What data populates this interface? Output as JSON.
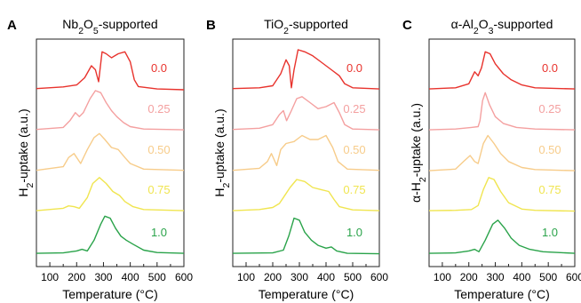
{
  "chart_data": [
    {
      "type": "line",
      "panel_letter": "A",
      "title": "Nb₂O₅-supported",
      "xlabel": "Temperature (°C)",
      "ylabel": "H₂-uptake (a.u.)",
      "xlim": [
        50,
        600
      ],
      "xticks": [
        100,
        200,
        300,
        400,
        500,
        600
      ],
      "y_axis_ticks": false,
      "series": [
        {
          "name": "0.0",
          "color": "#e8332d",
          "offset": 4,
          "points": [
            [
              50,
              0.03
            ],
            [
              150,
              0.07
            ],
            [
              200,
              0.12
            ],
            [
              230,
              0.3
            ],
            [
              255,
              0.6
            ],
            [
              270,
              0.5
            ],
            [
              282,
              0.2
            ],
            [
              295,
              0.95
            ],
            [
              310,
              0.9
            ],
            [
              330,
              0.8
            ],
            [
              355,
              0.9
            ],
            [
              380,
              0.95
            ],
            [
              400,
              0.7
            ],
            [
              415,
              0.25
            ],
            [
              430,
              0.08
            ],
            [
              500,
              0.02
            ],
            [
              600,
              0
            ]
          ]
        },
        {
          "name": "0.25",
          "color": "#f4a0a0",
          "offset": 3,
          "points": [
            [
              50,
              0.03
            ],
            [
              150,
              0.08
            ],
            [
              175,
              0.25
            ],
            [
              195,
              0.45
            ],
            [
              210,
              0.35
            ],
            [
              225,
              0.45
            ],
            [
              250,
              0.8
            ],
            [
              270,
              1.0
            ],
            [
              290,
              0.95
            ],
            [
              310,
              0.7
            ],
            [
              330,
              0.5
            ],
            [
              350,
              0.35
            ],
            [
              375,
              0.2
            ],
            [
              400,
              0.1
            ],
            [
              450,
              0.04
            ],
            [
              600,
              0.02
            ]
          ]
        },
        {
          "name": "0.50",
          "color": "#f7cc8a",
          "offset": 2,
          "points": [
            [
              50,
              0.03
            ],
            [
              150,
              0.12
            ],
            [
              170,
              0.35
            ],
            [
              190,
              0.45
            ],
            [
              205,
              0.3
            ],
            [
              215,
              0.2
            ],
            [
              240,
              0.55
            ],
            [
              265,
              0.85
            ],
            [
              285,
              0.95
            ],
            [
              305,
              0.8
            ],
            [
              330,
              0.6
            ],
            [
              355,
              0.55
            ],
            [
              380,
              0.35
            ],
            [
              400,
              0.2
            ],
            [
              450,
              0.06
            ],
            [
              600,
              0.03
            ]
          ]
        },
        {
          "name": "0.75",
          "color": "#f0e550",
          "offset": 1,
          "points": [
            [
              50,
              0.02
            ],
            [
              150,
              0.08
            ],
            [
              170,
              0.14
            ],
            [
              190,
              0.12
            ],
            [
              210,
              0.08
            ],
            [
              240,
              0.35
            ],
            [
              260,
              0.7
            ],
            [
              285,
              0.85
            ],
            [
              310,
              0.7
            ],
            [
              335,
              0.5
            ],
            [
              360,
              0.4
            ],
            [
              380,
              0.25
            ],
            [
              410,
              0.12
            ],
            [
              450,
              0.05
            ],
            [
              600,
              0.02
            ]
          ]
        },
        {
          "name": "1.0",
          "color": "#2aa34a",
          "offset": 0,
          "points": [
            [
              50,
              0.02
            ],
            [
              150,
              0.03
            ],
            [
              200,
              0.08
            ],
            [
              220,
              0.12
            ],
            [
              240,
              0.08
            ],
            [
              265,
              0.35
            ],
            [
              290,
              0.75
            ],
            [
              305,
              0.95
            ],
            [
              325,
              0.9
            ],
            [
              345,
              0.65
            ],
            [
              365,
              0.45
            ],
            [
              385,
              0.35
            ],
            [
              410,
              0.25
            ],
            [
              450,
              0.1
            ],
            [
              500,
              0.04
            ],
            [
              600,
              0.02
            ]
          ]
        }
      ]
    },
    {
      "type": "line",
      "panel_letter": "B",
      "title": "TiO₂-supported",
      "xlabel": "Temperature (°C)",
      "ylabel": "H₂-uptake (a.u.)",
      "xlim": [
        50,
        600
      ],
      "xticks": [
        100,
        200,
        300,
        400,
        500,
        600
      ],
      "y_axis_ticks": false,
      "series": [
        {
          "name": "0.0",
          "color": "#e8332d",
          "offset": 4,
          "points": [
            [
              50,
              0.03
            ],
            [
              150,
              0.05
            ],
            [
              200,
              0.1
            ],
            [
              230,
              0.4
            ],
            [
              250,
              0.75
            ],
            [
              262,
              0.6
            ],
            [
              270,
              0.05
            ],
            [
              280,
              0.5
            ],
            [
              295,
              1.0
            ],
            [
              320,
              0.95
            ],
            [
              350,
              0.85
            ],
            [
              380,
              0.7
            ],
            [
              420,
              0.5
            ],
            [
              450,
              0.35
            ],
            [
              470,
              0.15
            ],
            [
              500,
              0.05
            ],
            [
              600,
              0.02
            ]
          ]
        },
        {
          "name": "0.25",
          "color": "#f4a0a0",
          "offset": 3,
          "points": [
            [
              50,
              0.03
            ],
            [
              150,
              0.06
            ],
            [
              200,
              0.15
            ],
            [
              225,
              0.4
            ],
            [
              240,
              0.5
            ],
            [
              252,
              0.25
            ],
            [
              270,
              0.5
            ],
            [
              290,
              0.8
            ],
            [
              310,
              0.85
            ],
            [
              340,
              0.7
            ],
            [
              370,
              0.55
            ],
            [
              400,
              0.6
            ],
            [
              430,
              0.7
            ],
            [
              450,
              0.45
            ],
            [
              470,
              0.15
            ],
            [
              500,
              0.04
            ],
            [
              600,
              0.02
            ]
          ]
        },
        {
          "name": "0.50",
          "color": "#f7cc8a",
          "offset": 2,
          "points": [
            [
              50,
              0.03
            ],
            [
              150,
              0.08
            ],
            [
              180,
              0.25
            ],
            [
              195,
              0.45
            ],
            [
              205,
              0.3
            ],
            [
              215,
              0.15
            ],
            [
              230,
              0.55
            ],
            [
              250,
              0.7
            ],
            [
              280,
              0.75
            ],
            [
              310,
              0.9
            ],
            [
              340,
              0.8
            ],
            [
              370,
              0.8
            ],
            [
              400,
              0.9
            ],
            [
              425,
              0.6
            ],
            [
              445,
              0.25
            ],
            [
              480,
              0.06
            ],
            [
              600,
              0.03
            ]
          ]
        },
        {
          "name": "0.75",
          "color": "#f0e550",
          "offset": 1,
          "points": [
            [
              50,
              0.02
            ],
            [
              150,
              0.05
            ],
            [
              200,
              0.1
            ],
            [
              225,
              0.2
            ],
            [
              240,
              0.35
            ],
            [
              265,
              0.6
            ],
            [
              290,
              0.8
            ],
            [
              320,
              0.75
            ],
            [
              350,
              0.6
            ],
            [
              380,
              0.55
            ],
            [
              410,
              0.5
            ],
            [
              430,
              0.3
            ],
            [
              450,
              0.12
            ],
            [
              500,
              0.04
            ],
            [
              600,
              0.02
            ]
          ]
        },
        {
          "name": "1.0",
          "color": "#2aa34a",
          "offset": 0,
          "points": [
            [
              50,
              0.02
            ],
            [
              200,
              0.03
            ],
            [
              240,
              0.1
            ],
            [
              260,
              0.45
            ],
            [
              280,
              0.9
            ],
            [
              300,
              0.85
            ],
            [
              320,
              0.55
            ],
            [
              345,
              0.35
            ],
            [
              370,
              0.22
            ],
            [
              400,
              0.15
            ],
            [
              420,
              0.18
            ],
            [
              440,
              0.08
            ],
            [
              480,
              0.02
            ],
            [
              600,
              0.01
            ]
          ]
        }
      ]
    },
    {
      "type": "line",
      "panel_letter": "C",
      "title": "α-Al₂O₃-supported",
      "xlabel": "Temperature (°C)",
      "ylabel": "α-H₂-uptake (a.u.)",
      "xlim": [
        50,
        600
      ],
      "xticks": [
        100,
        200,
        300,
        400,
        500,
        600
      ],
      "y_axis_ticks": false,
      "series": [
        {
          "name": "0.0",
          "color": "#e8332d",
          "offset": 4,
          "points": [
            [
              50,
              0.02
            ],
            [
              150,
              0.05
            ],
            [
              200,
              0.15
            ],
            [
              222,
              0.45
            ],
            [
              235,
              0.35
            ],
            [
              248,
              0.55
            ],
            [
              262,
              0.95
            ],
            [
              280,
              0.9
            ],
            [
              300,
              0.65
            ],
            [
              330,
              0.4
            ],
            [
              360,
              0.25
            ],
            [
              400,
              0.12
            ],
            [
              450,
              0.05
            ],
            [
              600,
              0.02
            ]
          ]
        },
        {
          "name": "0.25",
          "color": "#f4a0a0",
          "offset": 3,
          "points": [
            [
              50,
              0.02
            ],
            [
              150,
              0.04
            ],
            [
              210,
              0.08
            ],
            [
              235,
              0.1
            ],
            [
              242,
              0.25
            ],
            [
              252,
              0.75
            ],
            [
              262,
              0.95
            ],
            [
              278,
              0.65
            ],
            [
              300,
              0.35
            ],
            [
              330,
              0.18
            ],
            [
              380,
              0.08
            ],
            [
              450,
              0.04
            ],
            [
              600,
              0.02
            ]
          ]
        },
        {
          "name": "0.50",
          "color": "#f7cc8a",
          "offset": 2,
          "points": [
            [
              50,
              0.02
            ],
            [
              150,
              0.06
            ],
            [
              180,
              0.25
            ],
            [
              205,
              0.4
            ],
            [
              222,
              0.25
            ],
            [
              235,
              0.2
            ],
            [
              255,
              0.7
            ],
            [
              272,
              0.9
            ],
            [
              295,
              0.7
            ],
            [
              320,
              0.45
            ],
            [
              350,
              0.25
            ],
            [
              400,
              0.1
            ],
            [
              450,
              0.05
            ],
            [
              600,
              0.02
            ]
          ]
        },
        {
          "name": "0.75",
          "color": "#f0e550",
          "offset": 1,
          "points": [
            [
              50,
              0.02
            ],
            [
              150,
              0.03
            ],
            [
              210,
              0.05
            ],
            [
              235,
              0.15
            ],
            [
              255,
              0.55
            ],
            [
              275,
              0.85
            ],
            [
              295,
              0.8
            ],
            [
              320,
              0.5
            ],
            [
              350,
              0.22
            ],
            [
              400,
              0.06
            ],
            [
              450,
              0.03
            ],
            [
              600,
              0.01
            ]
          ]
        },
        {
          "name": "1.0",
          "color": "#2aa34a",
          "offset": 0,
          "points": [
            [
              50,
              0.02
            ],
            [
              150,
              0.03
            ],
            [
              200,
              0.08
            ],
            [
              222,
              0.12
            ],
            [
              238,
              0.06
            ],
            [
              262,
              0.35
            ],
            [
              290,
              0.75
            ],
            [
              310,
              0.85
            ],
            [
              335,
              0.65
            ],
            [
              360,
              0.4
            ],
            [
              390,
              0.22
            ],
            [
              430,
              0.12
            ],
            [
              480,
              0.06
            ],
            [
              600,
              0.02
            ]
          ]
        }
      ]
    }
  ]
}
